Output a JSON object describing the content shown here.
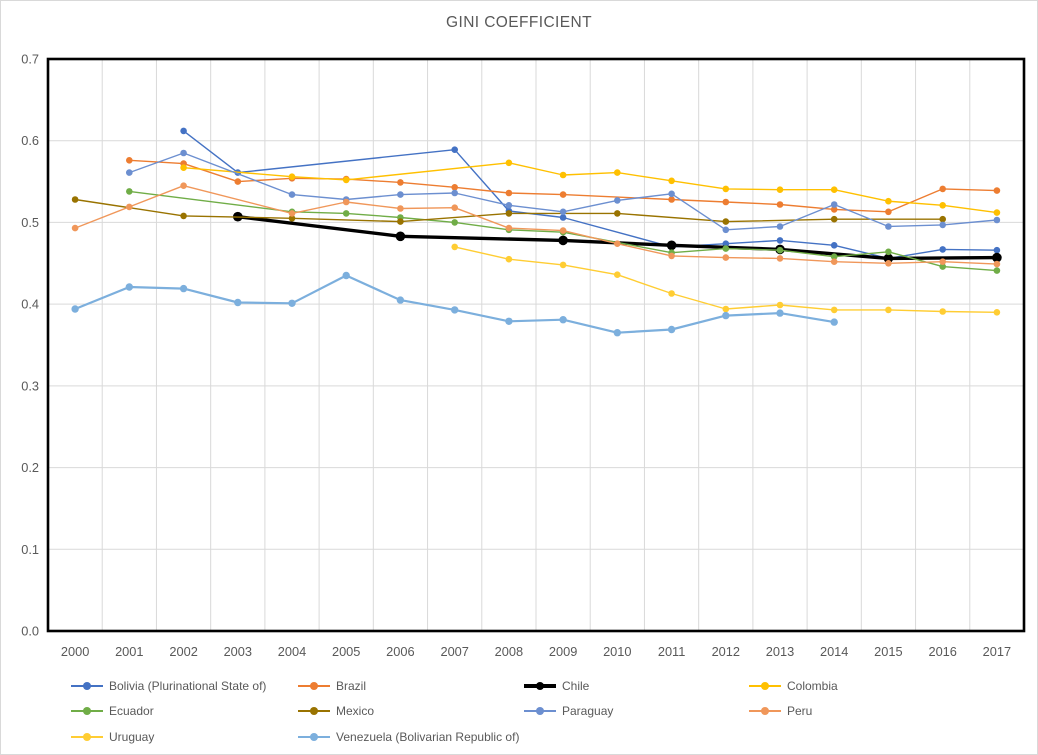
{
  "title": "GINI COEFFICIENT",
  "axes": {
    "y_tick_labels": [
      "0.0",
      "0.1",
      "0.2",
      "0.3",
      "0.4",
      "0.5",
      "0.6",
      "0.7"
    ],
    "x_tick_labels": [
      "2000",
      "2001",
      "2002",
      "2003",
      "2004",
      "2005",
      "2006",
      "2007",
      "2008",
      "2009",
      "2010",
      "2011",
      "2012",
      "2013",
      "2014",
      "2015",
      "2016",
      "2017"
    ]
  },
  "style_colors": {
    "text": "#595959",
    "gridline": "#d9d9d9",
    "plot_border": "#000000",
    "background": "#ffffff"
  },
  "chart_data": {
    "type": "line",
    "title": "GINI COEFFICIENT",
    "xlabel": "",
    "ylabel": "",
    "x": [
      2000,
      2001,
      2002,
      2003,
      2004,
      2005,
      2006,
      2007,
      2008,
      2009,
      2010,
      2011,
      2012,
      2013,
      2014,
      2015,
      2016,
      2017
    ],
    "ylim": [
      0,
      0.7
    ],
    "ytick_step": 0.1,
    "grid": true,
    "legend_position": "bottom",
    "series": [
      {
        "name": "Bolivia (Plurinational State of)",
        "color": "#4472C4",
        "width": 1.4,
        "marker": 3.3,
        "values": [
          null,
          null,
          0.612,
          0.561,
          null,
          null,
          null,
          0.589,
          0.514,
          0.506,
          null,
          0.47,
          0.474,
          0.478,
          0.472,
          0.456,
          0.467,
          0.466
        ]
      },
      {
        "name": "Brazil",
        "color": "#ED7D31",
        "width": 1.4,
        "marker": 3.3,
        "values": [
          null,
          0.576,
          0.572,
          0.55,
          0.554,
          0.553,
          0.549,
          0.543,
          0.536,
          0.534,
          null,
          0.528,
          0.525,
          0.522,
          0.516,
          0.513,
          0.541,
          0.539
        ]
      },
      {
        "name": "Chile",
        "color": "#000000",
        "width": 3.4,
        "marker": 4.8,
        "values": [
          null,
          null,
          null,
          0.507,
          null,
          null,
          0.483,
          null,
          null,
          0.478,
          null,
          0.472,
          null,
          0.467,
          null,
          0.456,
          null,
          0.457
        ]
      },
      {
        "name": "Colombia",
        "color": "#FFC000",
        "width": 1.4,
        "marker": 3.3,
        "values": [
          null,
          null,
          0.567,
          null,
          0.556,
          0.552,
          null,
          null,
          0.573,
          0.558,
          0.561,
          0.551,
          0.541,
          0.54,
          0.54,
          0.526,
          0.521,
          0.512
        ]
      },
      {
        "name": "Ecuador",
        "color": "#70AD47",
        "width": 1.4,
        "marker": 3.3,
        "values": [
          null,
          0.538,
          null,
          null,
          0.513,
          0.511,
          0.506,
          0.5,
          0.491,
          0.488,
          null,
          0.463,
          0.468,
          0.466,
          0.458,
          0.464,
          0.446,
          0.441
        ]
      },
      {
        "name": "Mexico",
        "color": "#997300",
        "width": 1.4,
        "marker": 3.3,
        "values": [
          0.528,
          null,
          0.508,
          null,
          0.505,
          null,
          0.501,
          null,
          0.511,
          null,
          0.511,
          null,
          0.501,
          null,
          0.504,
          null,
          0.504,
          null
        ]
      },
      {
        "name": "Paraguay",
        "color": "#6C8FD0",
        "width": 1.4,
        "marker": 3.3,
        "values": [
          null,
          0.561,
          0.585,
          null,
          0.534,
          0.528,
          0.534,
          0.536,
          0.521,
          0.513,
          0.527,
          0.535,
          0.491,
          0.495,
          0.522,
          0.495,
          0.497,
          0.503
        ]
      },
      {
        "name": "Peru",
        "color": "#F0975A",
        "width": 1.4,
        "marker": 3.3,
        "values": [
          0.493,
          0.519,
          0.545,
          null,
          0.511,
          0.525,
          0.517,
          0.518,
          0.493,
          0.49,
          0.474,
          0.459,
          0.457,
          0.456,
          0.452,
          0.45,
          0.452,
          0.449
        ]
      },
      {
        "name": "Uruguay",
        "color": "#FFCD33",
        "width": 1.4,
        "marker": 3.3,
        "values": [
          null,
          null,
          null,
          null,
          null,
          null,
          null,
          0.47,
          0.455,
          0.448,
          0.436,
          0.413,
          0.394,
          0.399,
          0.393,
          0.393,
          0.391,
          0.39
        ]
      },
      {
        "name": "Venezuela (Bolivarian Republic of)",
        "color": "#7CAFDD",
        "width": 2.2,
        "marker": 3.7,
        "values": [
          0.394,
          0.421,
          0.419,
          0.402,
          0.401,
          0.435,
          0.405,
          0.393,
          0.379,
          0.381,
          0.365,
          0.369,
          0.386,
          0.389,
          0.378,
          null,
          null,
          null
        ]
      }
    ]
  }
}
